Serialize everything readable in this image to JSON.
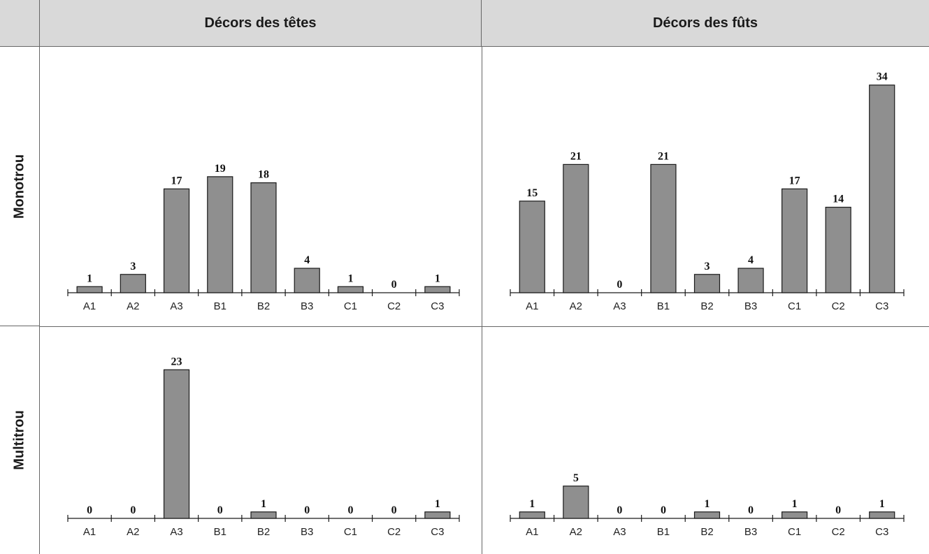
{
  "columns": [
    "Décors des têtes",
    "Décors des fûts"
  ],
  "rows": [
    "Monotrou",
    "Multitrou"
  ],
  "chart_data": [
    {
      "type": "bar",
      "row": "Monotrou",
      "column": "Décors des têtes",
      "categories": [
        "A1",
        "A2",
        "A3",
        "B1",
        "B2",
        "B3",
        "C1",
        "C2",
        "C3"
      ],
      "values": [
        1,
        3,
        17,
        19,
        18,
        4,
        1,
        0,
        1
      ],
      "ylim": [
        0,
        35
      ]
    },
    {
      "type": "bar",
      "row": "Monotrou",
      "column": "Décors des fûts",
      "categories": [
        "A1",
        "A2",
        "A3",
        "B1",
        "B2",
        "B3",
        "C1",
        "C2",
        "C3"
      ],
      "values": [
        15,
        21,
        0,
        21,
        3,
        4,
        17,
        14,
        34
      ],
      "ylim": [
        0,
        35
      ]
    },
    {
      "type": "bar",
      "row": "Multitrou",
      "column": "Décors des têtes",
      "categories": [
        "A1",
        "A2",
        "A3",
        "B1",
        "B2",
        "B3",
        "C1",
        "C2",
        "C3"
      ],
      "values": [
        0,
        0,
        23,
        0,
        1,
        0,
        0,
        0,
        1
      ],
      "ylim": [
        0,
        24
      ]
    },
    {
      "type": "bar",
      "row": "Multitrou",
      "column": "Décors des fûts",
      "categories": [
        "A1",
        "A2",
        "A3",
        "B1",
        "B2",
        "B3",
        "C1",
        "C2",
        "C3"
      ],
      "values": [
        1,
        5,
        0,
        0,
        1,
        0,
        1,
        0,
        1
      ],
      "ylim": [
        0,
        24
      ]
    }
  ],
  "colors": {
    "bar_fill": "#8f8f8f",
    "bar_stroke": "#1a1a1a",
    "header_bg": "#d9d9d9",
    "grid": "#666666"
  }
}
